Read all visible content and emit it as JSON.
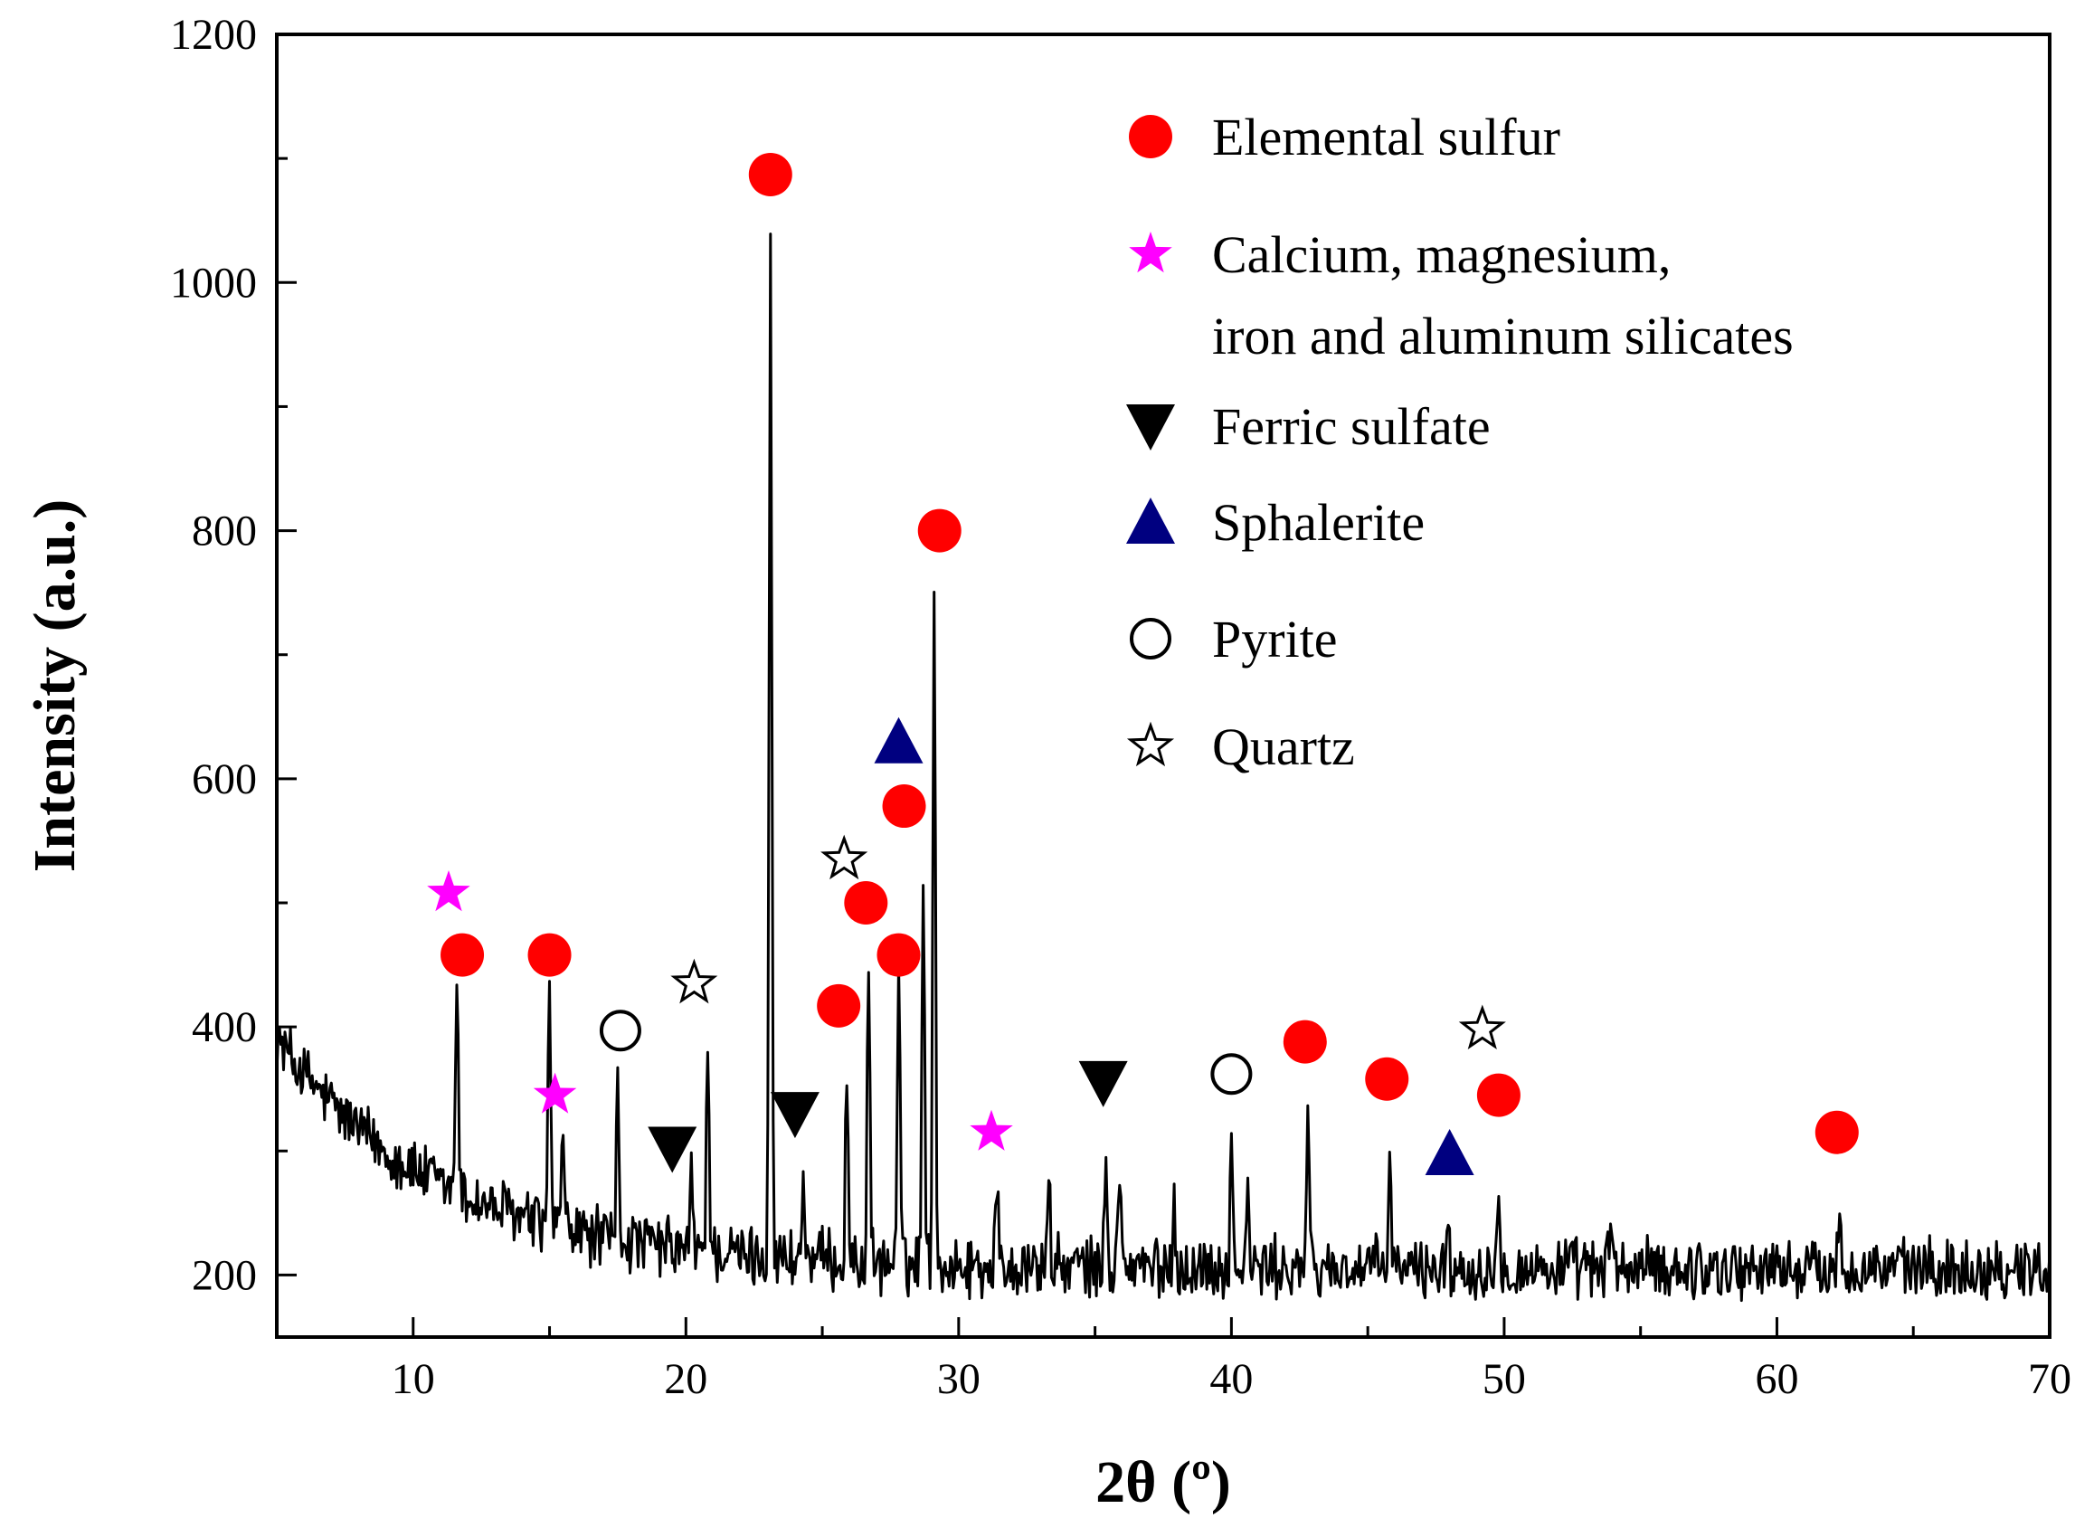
{
  "chart_data": {
    "type": "line",
    "title": "",
    "xlabel": "2θ (º)",
    "ylabel": "Intensity (a.u.)",
    "xlim": [
      5,
      70
    ],
    "ylim": [
      150,
      1200
    ],
    "xticks": [
      10,
      20,
      30,
      40,
      50,
      60,
      70
    ],
    "yticks": [
      200,
      400,
      600,
      800,
      1000,
      1200
    ],
    "grid": false,
    "legend_position": "top-right",
    "colors": {
      "elemental_sulfur": "#ff0000",
      "silicates": "#ff00ff",
      "ferric_sulfate": "#000000",
      "sphalerite": "#000080",
      "pyrite": "#000000",
      "quartz": "#000000"
    },
    "legend": [
      {
        "key": "elemental_sulfur",
        "marker": "filled-circle",
        "color": "#ff0000",
        "lines": [
          "Elemental sulfur"
        ]
      },
      {
        "key": "silicates",
        "marker": "filled-star",
        "color": "#ff00ff",
        "lines": [
          "Calcium, magnesium,",
          "iron and aluminum silicates"
        ]
      },
      {
        "key": "ferric_sulfate",
        "marker": "down-triangle",
        "color": "#000000",
        "lines": [
          "Ferric sulfate"
        ]
      },
      {
        "key": "sphalerite",
        "marker": "up-triangle",
        "color": "#000080",
        "lines": [
          "Sphalerite"
        ]
      },
      {
        "key": "pyrite",
        "marker": "open-circle",
        "color": "#000000",
        "lines": [
          "Pyrite"
        ]
      },
      {
        "key": "quartz",
        "marker": "open-star",
        "color": "#000000",
        "lines": [
          "Quartz"
        ]
      }
    ],
    "baseline": {
      "start_intensity": 390,
      "end_intensity": 205,
      "decay_center": 7,
      "decay_width": 6,
      "noise_amplitude": 22,
      "step": 0.05
    },
    "peaks": [
      {
        "x": 11.6,
        "y": 415
      },
      {
        "x": 15.0,
        "y": 425
      },
      {
        "x": 15.5,
        "y": 310
      },
      {
        "x": 17.5,
        "y": 355
      },
      {
        "x": 20.2,
        "y": 290
      },
      {
        "x": 20.8,
        "y": 410
      },
      {
        "x": 23.1,
        "y": 1050
      },
      {
        "x": 24.3,
        "y": 295
      },
      {
        "x": 25.9,
        "y": 385
      },
      {
        "x": 26.7,
        "y": 470
      },
      {
        "x": 27.8,
        "y": 475
      },
      {
        "x": 28.7,
        "y": 555
      },
      {
        "x": 29.1,
        "y": 770
      },
      {
        "x": 31.4,
        "y": 295
      },
      {
        "x": 33.3,
        "y": 305
      },
      {
        "x": 35.4,
        "y": 315
      },
      {
        "x": 35.9,
        "y": 315
      },
      {
        "x": 37.9,
        "y": 285
      },
      {
        "x": 40.0,
        "y": 325
      },
      {
        "x": 40.6,
        "y": 290
      },
      {
        "x": 42.8,
        "y": 350
      },
      {
        "x": 45.8,
        "y": 325
      },
      {
        "x": 47.9,
        "y": 270
      },
      {
        "x": 49.8,
        "y": 305
      },
      {
        "x": 53.9,
        "y": 275
      },
      {
        "x": 62.3,
        "y": 275
      }
    ],
    "markers": [
      {
        "phase": "elemental_sulfur",
        "x": 11.8,
        "y": 458
      },
      {
        "phase": "elemental_sulfur",
        "x": 15.0,
        "y": 458
      },
      {
        "phase": "elemental_sulfur",
        "x": 23.1,
        "y": 1087
      },
      {
        "phase": "elemental_sulfur",
        "x": 25.6,
        "y": 417
      },
      {
        "phase": "elemental_sulfur",
        "x": 26.6,
        "y": 500
      },
      {
        "phase": "elemental_sulfur",
        "x": 27.8,
        "y": 458
      },
      {
        "phase": "elemental_sulfur",
        "x": 28.0,
        "y": 578
      },
      {
        "phase": "elemental_sulfur",
        "x": 29.3,
        "y": 800
      },
      {
        "phase": "elemental_sulfur",
        "x": 42.7,
        "y": 388
      },
      {
        "phase": "elemental_sulfur",
        "x": 45.7,
        "y": 358
      },
      {
        "phase": "elemental_sulfur",
        "x": 49.8,
        "y": 345
      },
      {
        "phase": "elemental_sulfur",
        "x": 62.2,
        "y": 315
      },
      {
        "phase": "silicates",
        "x": 11.3,
        "y": 508
      },
      {
        "phase": "silicates",
        "x": 15.2,
        "y": 345
      },
      {
        "phase": "silicates",
        "x": 31.2,
        "y": 315
      },
      {
        "phase": "ferric_sulfate",
        "x": 19.5,
        "y": 302
      },
      {
        "phase": "ferric_sulfate",
        "x": 24.0,
        "y": 330
      },
      {
        "phase": "ferric_sulfate",
        "x": 35.3,
        "y": 355
      },
      {
        "phase": "sphalerite",
        "x": 27.8,
        "y": 630
      },
      {
        "phase": "sphalerite",
        "x": 48.0,
        "y": 298
      },
      {
        "phase": "pyrite",
        "x": 17.6,
        "y": 397
      },
      {
        "phase": "pyrite",
        "x": 40.0,
        "y": 362
      },
      {
        "phase": "quartz",
        "x": 20.3,
        "y": 435
      },
      {
        "phase": "quartz",
        "x": 25.8,
        "y": 535
      },
      {
        "phase": "quartz",
        "x": 49.2,
        "y": 398
      }
    ]
  }
}
